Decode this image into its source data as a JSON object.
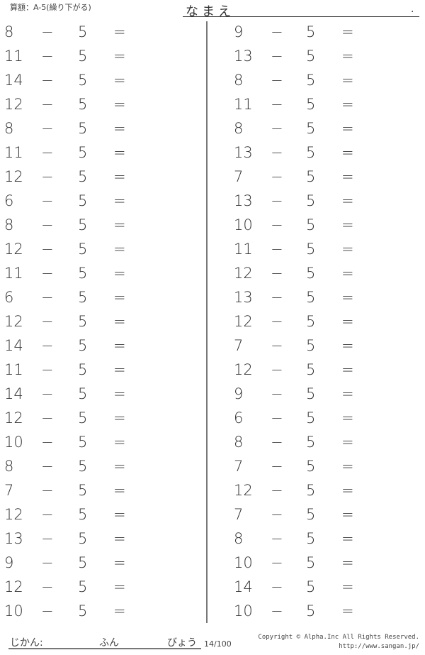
{
  "header": {
    "title": "算額：A-5(繰り下がる)",
    "name_label": "なまえ",
    "name_end": "."
  },
  "problems": {
    "operator": "−",
    "subtrahend": "5",
    "equals": "=",
    "left": [
      "8",
      "11",
      "14",
      "12",
      "8",
      "11",
      "12",
      "6",
      "8",
      "12",
      "11",
      "6",
      "12",
      "14",
      "11",
      "14",
      "12",
      "10",
      "8",
      "7",
      "12",
      "13",
      "9",
      "12",
      "10"
    ],
    "right": [
      "9",
      "13",
      "8",
      "11",
      "8",
      "13",
      "7",
      "13",
      "10",
      "11",
      "12",
      "13",
      "12",
      "7",
      "12",
      "9",
      "6",
      "8",
      "7",
      "12",
      "7",
      "8",
      "10",
      "14",
      "10"
    ]
  },
  "footer": {
    "time_label": "じかん:",
    "minutes_label": "ふん",
    "seconds_label": "びょう",
    "page": "14/100",
    "copyright": "Copyright © Alpha.Inc All Rights Reserved.",
    "url": "http://www.sangan.jp/"
  }
}
